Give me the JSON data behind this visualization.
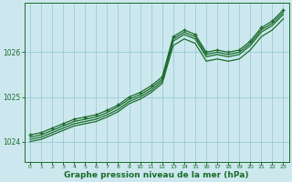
{
  "background_color": "#cce8ee",
  "grid_color": "#99ccd6",
  "line_color": "#1a6b2a",
  "xlabel": "Graphe pression niveau de la mer (hPa)",
  "xlabel_fontsize": 6.5,
  "yticks": [
    1024,
    1025,
    1026
  ],
  "xticks": [
    0,
    1,
    2,
    3,
    4,
    5,
    6,
    7,
    8,
    9,
    10,
    11,
    12,
    13,
    14,
    15,
    16,
    17,
    18,
    19,
    20,
    21,
    22,
    23
  ],
  "xlim": [
    -0.5,
    23.5
  ],
  "ylim": [
    1023.55,
    1027.1
  ],
  "series": [
    [
      1024.15,
      1024.2,
      1024.3,
      1024.4,
      1024.5,
      1024.55,
      1024.6,
      1024.7,
      1024.82,
      1025.0,
      1025.1,
      1025.25,
      1025.45,
      1026.35,
      1026.5,
      1026.4,
      1026.0,
      1026.05,
      1026.0,
      1026.05,
      1026.25,
      1026.55,
      1026.7,
      1026.95
    ],
    [
      1024.1,
      1024.15,
      1024.25,
      1024.35,
      1024.45,
      1024.5,
      1024.55,
      1024.65,
      1024.78,
      1024.95,
      1025.05,
      1025.2,
      1025.4,
      1026.3,
      1026.45,
      1026.35,
      1025.95,
      1026.0,
      1025.95,
      1026.0,
      1026.2,
      1026.5,
      1026.65,
      1026.9
    ],
    [
      1024.05,
      1024.1,
      1024.2,
      1024.3,
      1024.4,
      1024.45,
      1024.5,
      1024.6,
      1024.72,
      1024.9,
      1025.0,
      1025.15,
      1025.35,
      1026.25,
      1026.4,
      1026.3,
      1025.9,
      1025.95,
      1025.9,
      1025.95,
      1026.15,
      1026.45,
      1026.6,
      1026.85
    ],
    [
      1024.0,
      1024.05,
      1024.15,
      1024.25,
      1024.35,
      1024.4,
      1024.45,
      1024.55,
      1024.67,
      1024.85,
      1024.95,
      1025.1,
      1025.3,
      1026.15,
      1026.3,
      1026.2,
      1025.8,
      1025.85,
      1025.8,
      1025.85,
      1026.05,
      1026.35,
      1026.5,
      1026.75
    ]
  ],
  "marker_series": 0,
  "marker": "+",
  "marker_size": 3.5,
  "linewidth": 0.9
}
